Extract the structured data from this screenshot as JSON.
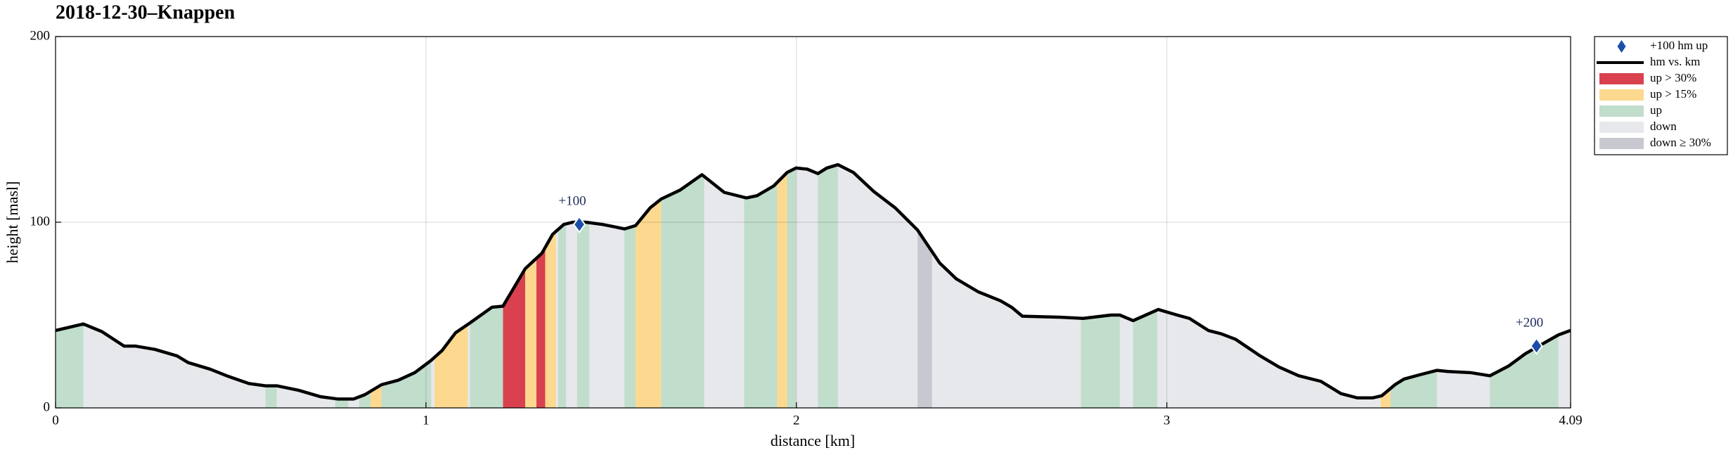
{
  "chart_data": {
    "type": "line",
    "title": "2018-12-30–Knappen",
    "xlabel": "distance [km]",
    "ylabel": "height [masl]",
    "xlim": [
      0,
      4.09
    ],
    "xticks": [
      0,
      1,
      2,
      3,
      4.09
    ],
    "ylim": [
      0,
      200
    ],
    "yticks": [
      0,
      100,
      200
    ],
    "grid": true,
    "legend": "outside-right",
    "series": [
      {
        "name": "hm vs. km",
        "color": "#000000",
        "x": [
          0,
          0.075,
          0.125,
          0.185,
          0.215,
          0.268,
          0.328,
          0.358,
          0.418,
          0.462,
          0.522,
          0.567,
          0.597,
          0.656,
          0.716,
          0.761,
          0.805,
          0.835,
          0.88,
          0.925,
          0.97,
          1.014,
          1.044,
          1.08,
          1.119,
          1.178,
          1.208,
          1.268,
          1.313,
          1.342,
          1.372,
          1.396,
          1.432,
          1.477,
          1.507,
          1.536,
          1.566,
          1.605,
          1.635,
          1.686,
          1.745,
          1.805,
          1.865,
          1.894,
          1.939,
          1.975,
          1.999,
          2.029,
          2.058,
          2.082,
          2.112,
          2.154,
          2.208,
          2.267,
          2.327,
          2.387,
          2.431,
          2.491,
          2.551,
          2.581,
          2.61,
          2.715,
          2.774,
          2.849,
          2.873,
          2.909,
          2.977,
          3.028,
          3.061,
          3.112,
          3.147,
          3.186,
          3.252,
          3.303,
          3.356,
          3.416,
          3.47,
          3.514,
          3.556,
          3.58,
          3.616,
          3.64,
          3.684,
          3.729,
          3.759,
          3.819,
          3.872,
          3.923,
          3.968,
          4.004,
          4.057,
          4.09
        ],
        "values": [
          41.7,
          45.2,
          41.1,
          33.3,
          33.3,
          31.5,
          28.0,
          24.4,
          20.8,
          17.3,
          13.1,
          11.9,
          11.9,
          9.5,
          6.0,
          4.8,
          4.8,
          7.1,
          12.5,
          14.9,
          19.0,
          25.6,
          31.0,
          40.5,
          45.8,
          54.2,
          54.8,
          75.0,
          83.3,
          93.5,
          98.8,
          100.0,
          100.0,
          98.8,
          97.6,
          96.4,
          98.2,
          107.7,
          112.5,
          117.3,
          125.6,
          116.1,
          113.1,
          114.3,
          119.6,
          126.8,
          129.2,
          128.6,
          126.2,
          129.2,
          131.0,
          126.8,
          116.7,
          107.7,
          95.8,
          78.0,
          69.6,
          62.5,
          57.7,
          54.2,
          49.4,
          48.8,
          48.2,
          50.0,
          50.0,
          47.0,
          53.0,
          50.0,
          48.2,
          41.7,
          39.9,
          36.9,
          28.0,
          22.0,
          17.3,
          14.3,
          7.7,
          5.4,
          5.4,
          6.5,
          12.5,
          15.5,
          17.9,
          20.2,
          19.6,
          19.0,
          17.3,
          22.6,
          29.2,
          33.3,
          39.3,
          41.7
        ]
      }
    ],
    "markers": {
      "name": "+100 hm up",
      "color": "#1b4fa8",
      "x": [
        1.414,
        3.998
      ],
      "values": [
        98.8,
        33.3
      ],
      "annotations": [
        "+100",
        "+200"
      ]
    },
    "bands": [
      {
        "name": "up > 30%",
        "color": "#d9414f",
        "ranges": [
          [
            1.202,
            1.268
          ],
          [
            1.298,
            1.322
          ]
        ]
      },
      {
        "name": "up > 15%",
        "color": "#fdd98f",
        "ranges": [
          [
            0.85,
            0.88
          ],
          [
            1.023,
            1.113
          ],
          [
            1.268,
            1.298
          ],
          [
            1.322,
            1.351
          ],
          [
            1.566,
            1.635
          ],
          [
            1.948,
            1.975
          ],
          [
            3.577,
            3.604
          ]
        ]
      },
      {
        "name": "up",
        "color": "#c1ddcc",
        "ranges": [
          [
            0,
            0.075
          ],
          [
            0.567,
            0.597
          ],
          [
            0.755,
            0.79
          ],
          [
            0.82,
            0.85
          ],
          [
            0.88,
            1.014
          ],
          [
            1.119,
            1.208
          ],
          [
            1.357,
            1.378
          ],
          [
            1.408,
            1.441
          ],
          [
            1.536,
            1.566
          ],
          [
            1.635,
            1.751
          ],
          [
            1.859,
            1.948
          ],
          [
            1.975,
            1.999
          ],
          [
            2.058,
            2.112
          ],
          [
            2.768,
            2.873
          ],
          [
            2.909,
            2.974
          ],
          [
            3.604,
            3.729
          ],
          [
            3.872,
            4.057
          ]
        ]
      },
      {
        "name": "down",
        "color": "#e7e8eb"
      },
      {
        "name": "down ≥ 30%",
        "color": "#c8c9d0",
        "ranges": [
          [
            2.327,
            2.366
          ]
        ]
      }
    ]
  }
}
